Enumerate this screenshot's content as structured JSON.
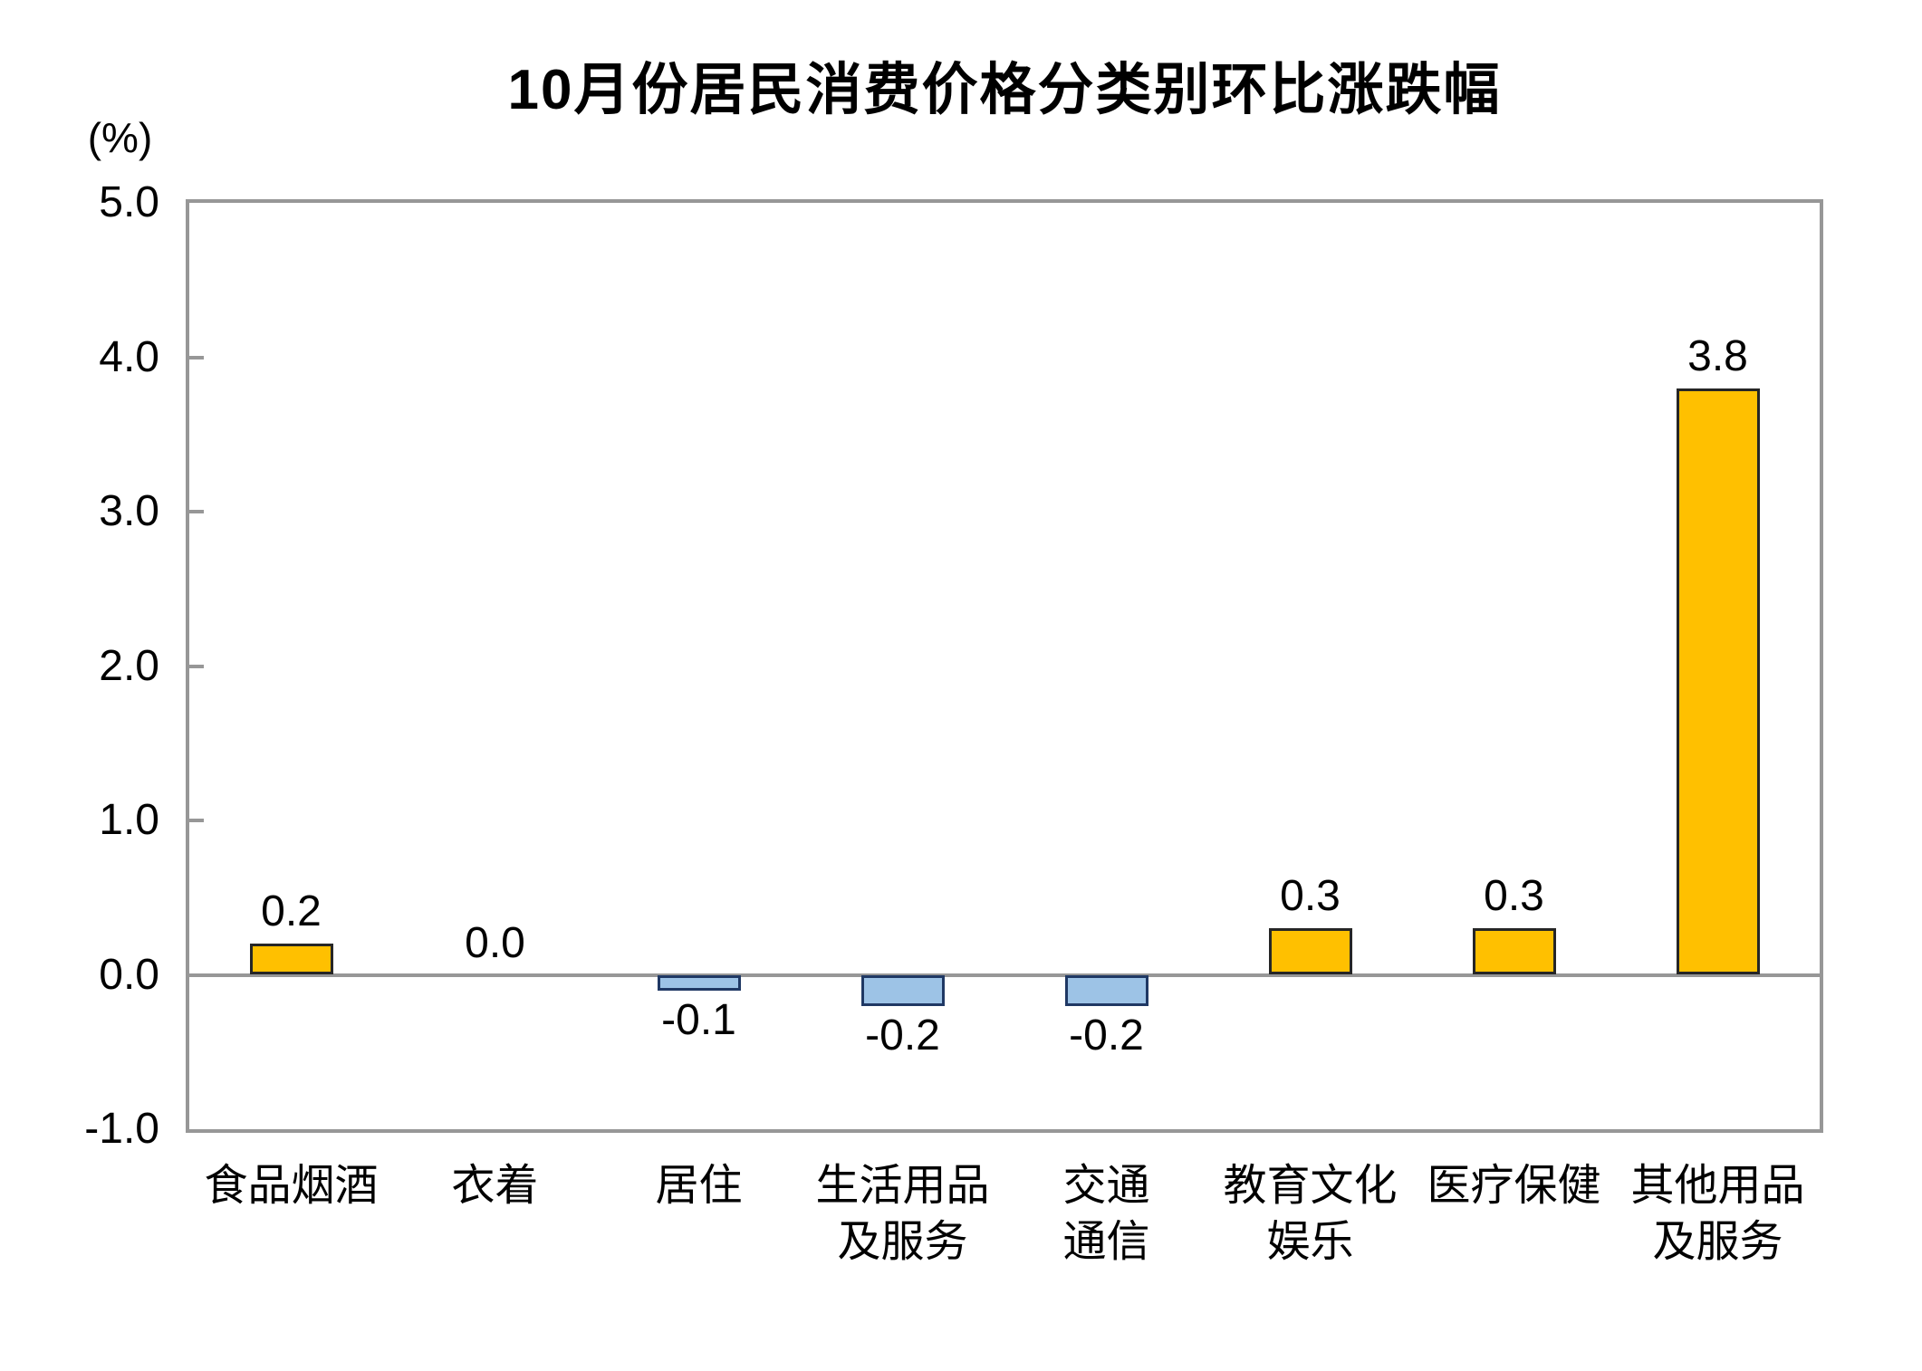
{
  "title": "10月份居民消费价格分类别环比涨跌幅",
  "colors": {
    "positive_bar": "#FFC000",
    "positive_bar_border": "#262626",
    "negative_bar": "#9DC3E6",
    "negative_bar_border": "#1F3864",
    "axis_line": "#979797",
    "text": "#000000"
  },
  "chart_data": {
    "type": "bar",
    "title": "10月份居民消费价格分类别环比涨跌幅",
    "ylabel": "(%)",
    "categories": [
      "食品烟酒",
      "衣着",
      "居住",
      "生活用品及服务",
      "交通通信",
      "教育文化娱乐",
      "医疗保健",
      "其他用品及服务"
    ],
    "category_lines": [
      [
        "食品烟酒"
      ],
      [
        "衣着"
      ],
      [
        "居住"
      ],
      [
        "生活用品",
        "及服务"
      ],
      [
        "交通",
        "通信"
      ],
      [
        "教育文化",
        "娱乐"
      ],
      [
        "医疗保健"
      ],
      [
        "其他用品",
        "及服务"
      ]
    ],
    "values": [
      0.2,
      0.0,
      -0.1,
      -0.2,
      -0.2,
      0.3,
      0.3,
      3.8
    ],
    "labels": [
      "0.2",
      "0.0",
      "-0.1",
      "-0.2",
      "-0.2",
      "0.3",
      "0.3",
      "3.8"
    ],
    "ylim": [
      -1.0,
      5.0
    ],
    "yticks": [
      5.0,
      4.0,
      3.0,
      2.0,
      1.0,
      0.0,
      -1.0
    ],
    "ytick_labels": [
      "5.0",
      "4.0",
      "3.0",
      "2.0",
      "1.0",
      "0.0",
      "-1.0"
    ],
    "grid": false,
    "legend": null,
    "bar_color_rule": "positive values orange, negative values light blue"
  }
}
